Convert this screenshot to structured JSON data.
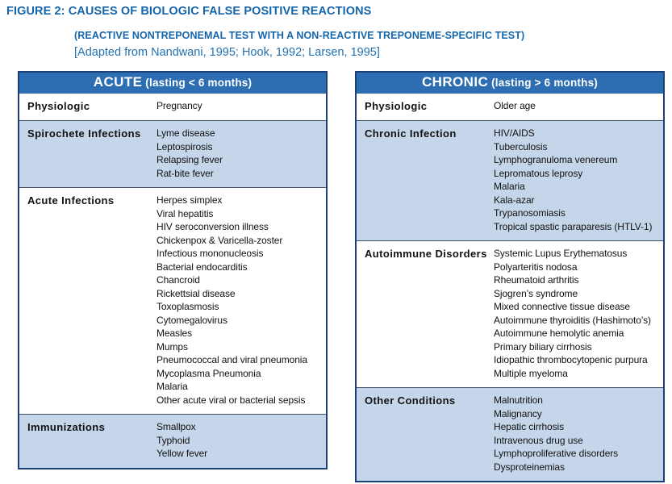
{
  "figure": {
    "title": "FIGURE 2: CAUSES OF BIOLOGIC FALSE POSITIVE REACTIONS",
    "subtitle": "(REACTIVE NONTREPONEMAL TEST WITH A NON-REACTIVE TREPONEME-SPECIFIC TEST)",
    "citation": "[Adapted from Nandwani, 1995; Hook, 1992; Larsen, 1995]"
  },
  "colors": {
    "title_blue": "#1565ab",
    "citation_blue": "#2471ae",
    "header_bar_blue": "#2d6eb3",
    "row_light_blue": "#c6d6ea",
    "table_border_navy": "#1c4076",
    "row_separator": "#44506b",
    "body_text": "#111111"
  },
  "tables": [
    {
      "id": "acute",
      "header_main": "ACUTE",
      "header_sub": "(lasting < 6 months)",
      "rows": [
        {
          "category": "Physiologic",
          "items": [
            "Pregnancy"
          ]
        },
        {
          "category": "Spirochete Infections",
          "items": [
            "Lyme disease",
            "Leptospirosis",
            "Relapsing fever",
            "Rat-bite fever"
          ]
        },
        {
          "category": "Acute Infections",
          "items": [
            "Herpes simplex",
            "Viral hepatitis",
            "HIV seroconversion illness",
            "Chickenpox & Varicella-zoster",
            "Infectious mononucleosis",
            "Bacterial endocarditis",
            "Chancroid",
            "Rickettsial disease",
            "Toxoplasmosis",
            "Cytomegalovirus",
            "Measles",
            "Mumps",
            "Pneumococcal and viral pneumonia",
            "Mycoplasma Pneumonia",
            "Malaria",
            "Other acute viral or bacterial sepsis"
          ]
        },
        {
          "category": "Immunizations",
          "items": [
            "Smallpox",
            "Typhoid",
            "Yellow fever"
          ]
        }
      ]
    },
    {
      "id": "chronic",
      "header_main": "CHRONIC",
      "header_sub": "(lasting > 6 months)",
      "rows": [
        {
          "category": "Physiologic",
          "items": [
            "Older age"
          ]
        },
        {
          "category": "Chronic Infection",
          "items": [
            "HIV/AIDS",
            "Tuberculosis",
            "Lymphogranuloma venereum",
            "Lepromatous leprosy",
            "Malaria",
            "Kala-azar",
            "Trypanosomiasis",
            "Tropical spastic paraparesis (HTLV-1)"
          ]
        },
        {
          "category": "Autoimmune Disorders",
          "items": [
            "Systemic Lupus Erythematosus",
            "Polyarteritis nodosa",
            "Rheumatoid arthritis",
            "Sjogren’s syndrome",
            "Mixed connective tissue disease",
            "Autoimmune thyroiditis (Hashimoto’s)",
            "Autoimmune hemolytic anemia",
            "Primary biliary cirrhosis",
            "Idiopathic thrombocytopenic purpura",
            "Multiple myeloma"
          ]
        },
        {
          "category": "Other Conditions",
          "items": [
            "Malnutrition",
            "Malignancy",
            "Hepatic cirrhosis",
            "Intravenous drug use",
            "Lymphoproliferative disorders",
            "Dysproteinemias"
          ]
        }
      ]
    }
  ]
}
